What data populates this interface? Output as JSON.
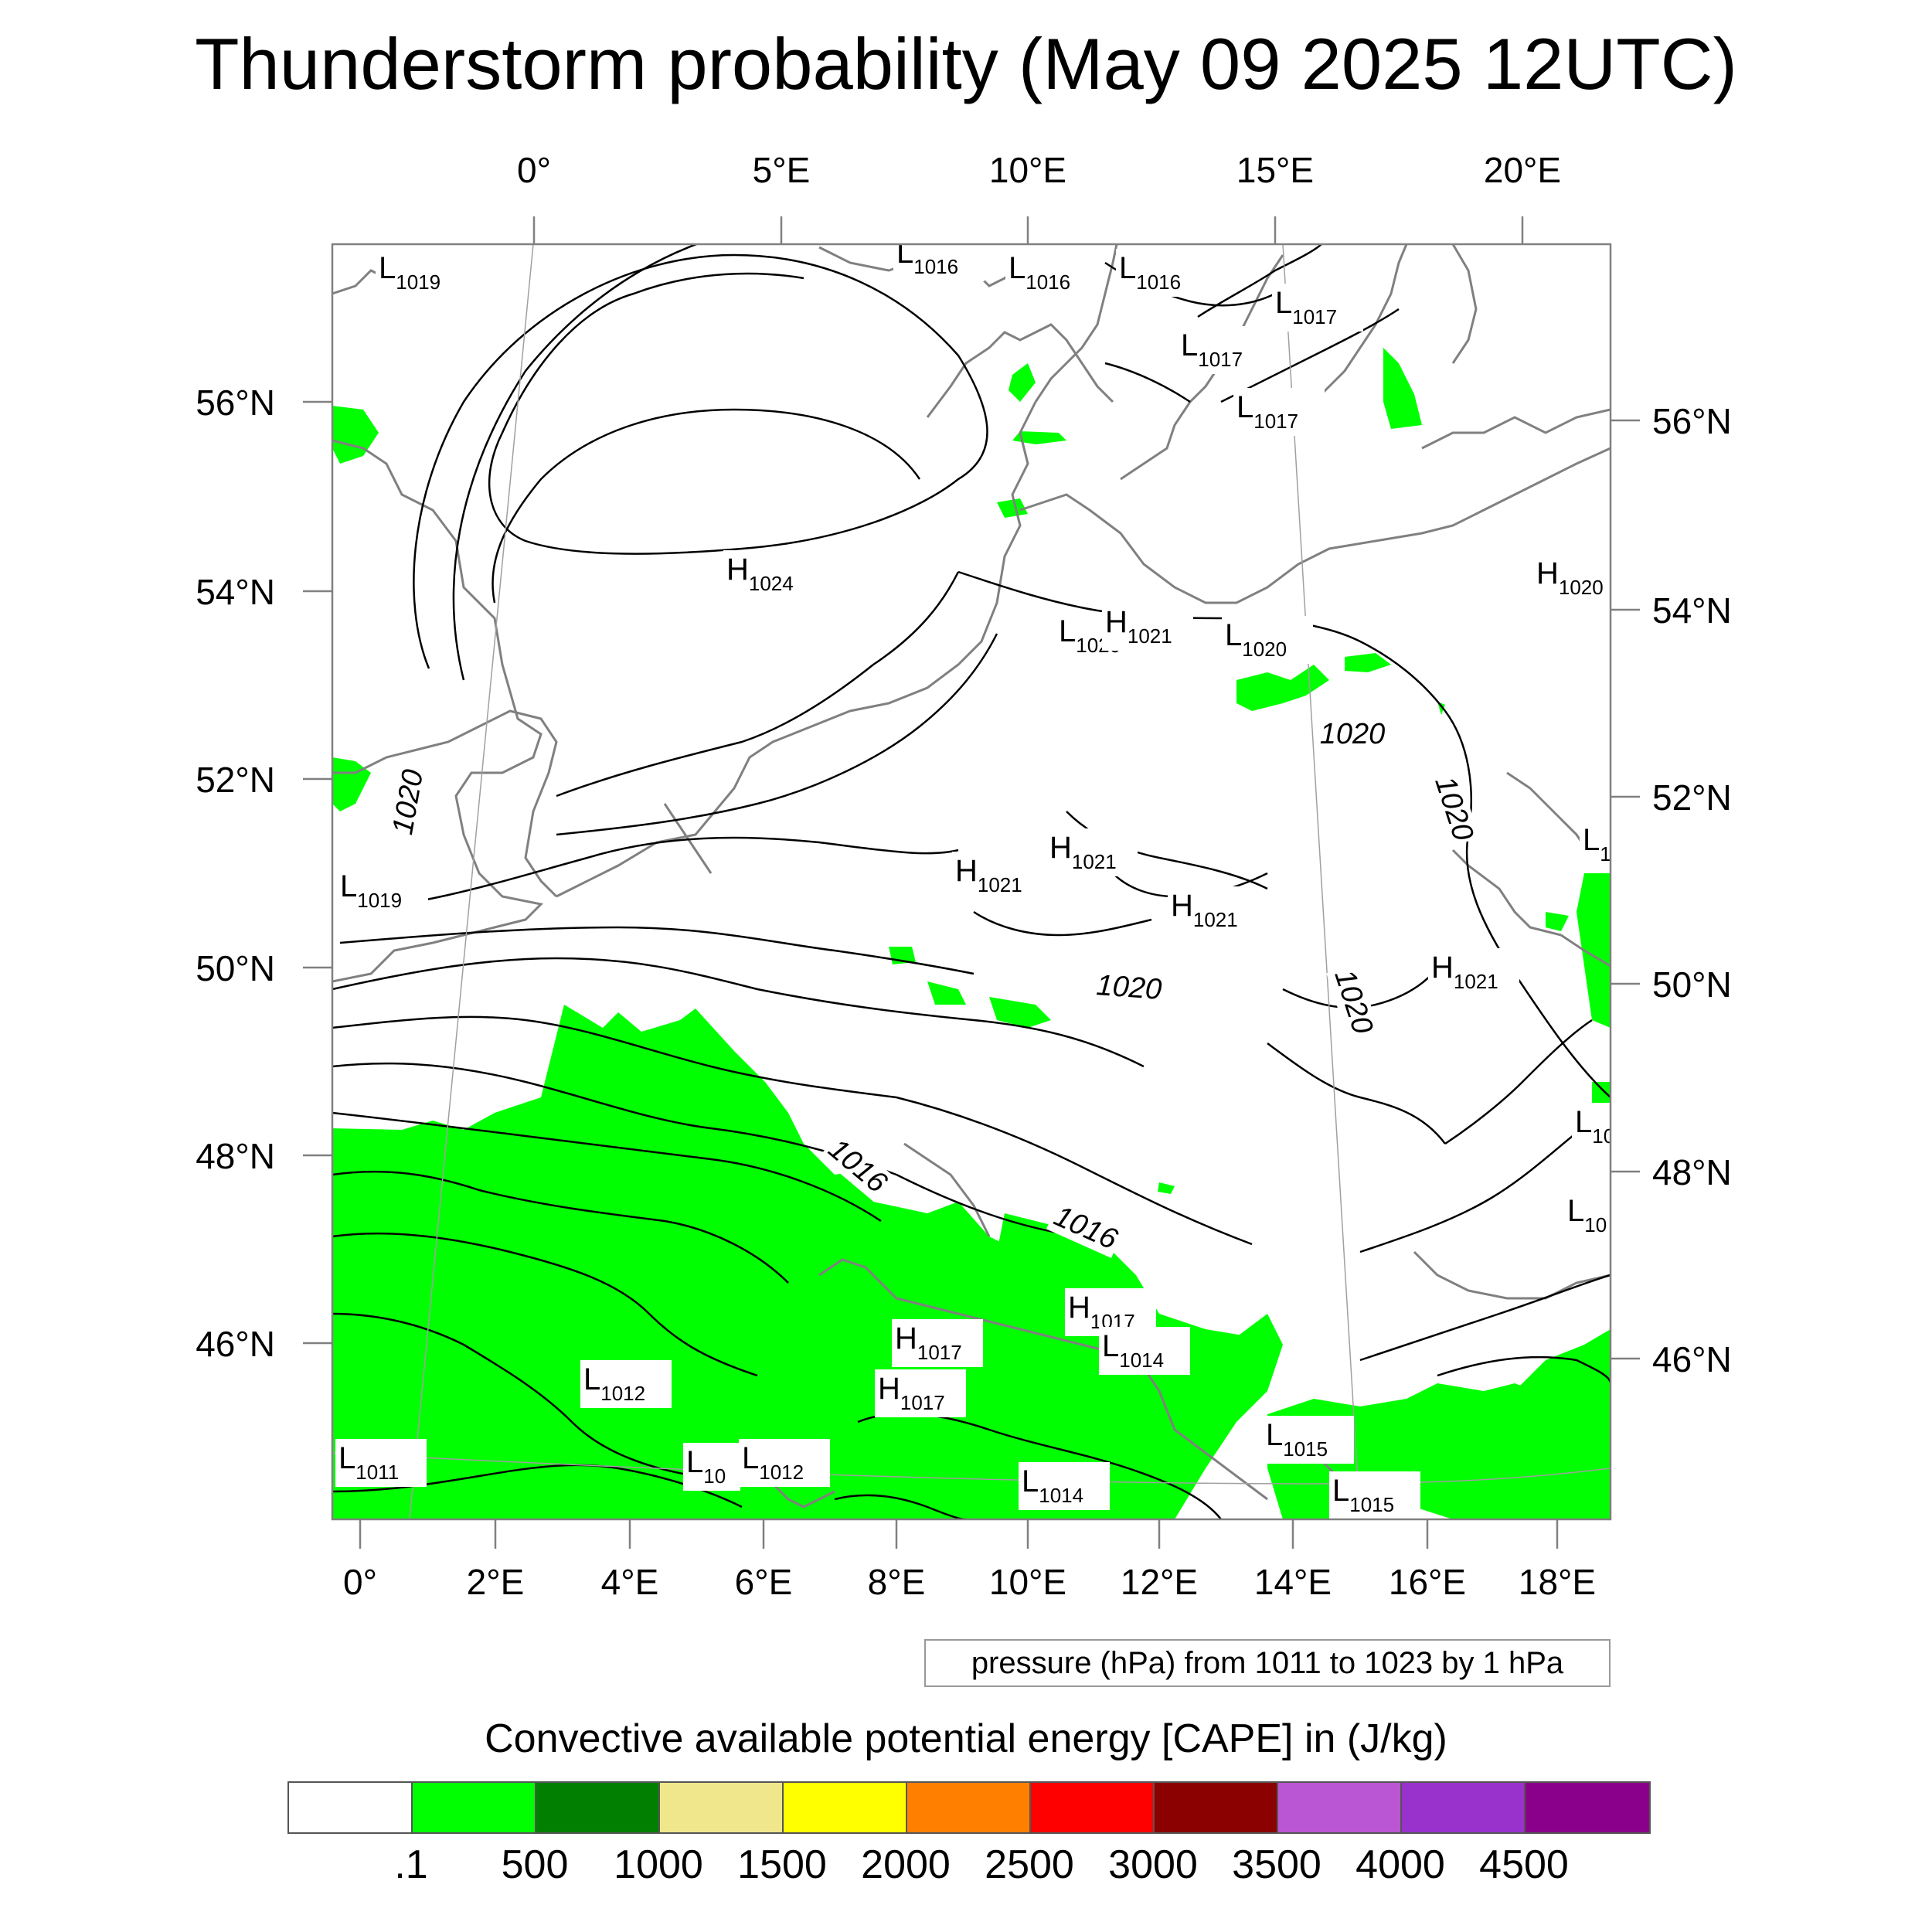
{
  "title": "Thunderstorm probability (May 09 2025 12UTC)",
  "map": {
    "top_lon_labels": [
      "0°",
      "5°E",
      "10°E",
      "15°E",
      "20°E"
    ],
    "left_lat_labels": [
      "56°N",
      "54°N",
      "52°N",
      "50°N",
      "48°N",
      "46°N"
    ],
    "right_lat_labels": [
      "56°N",
      "54°N",
      "52°N",
      "50°N",
      "48°N",
      "46°N"
    ],
    "bottom_lon_labels": [
      "0°",
      "2°E",
      "4°E",
      "6°E",
      "8°E",
      "10°E",
      "12°E",
      "14°E",
      "16°E",
      "18°E"
    ],
    "isobar_labels": [
      "1020",
      "1020",
      "1020",
      "1020",
      "1020",
      "1016",
      "1016"
    ],
    "pressure_centers": [
      {
        "type": "L",
        "value": "1019"
      },
      {
        "type": "L",
        "value": "1016"
      },
      {
        "type": "L",
        "value": "1016"
      },
      {
        "type": "L",
        "value": "1016"
      },
      {
        "type": "L",
        "value": "1017"
      },
      {
        "type": "L",
        "value": "1017"
      },
      {
        "type": "L",
        "value": "1017"
      },
      {
        "type": "H",
        "value": "1024"
      },
      {
        "type": "H",
        "value": "1020"
      },
      {
        "type": "L",
        "value": "1020"
      },
      {
        "type": "H",
        "value": "1021"
      },
      {
        "type": "L",
        "value": "1020"
      },
      {
        "type": "L",
        "value": "1019"
      },
      {
        "type": "H",
        "value": "1021"
      },
      {
        "type": "H",
        "value": "1021"
      },
      {
        "type": "H",
        "value": "1021"
      },
      {
        "type": "H",
        "value": "1021"
      },
      {
        "type": "H",
        "value": "1017"
      },
      {
        "type": "L",
        "value": "1014"
      },
      {
        "type": "H",
        "value": "1017"
      },
      {
        "type": "H",
        "value": "1017"
      },
      {
        "type": "L",
        "value": "1012"
      },
      {
        "type": "L",
        "value": "1011"
      },
      {
        "type": "L",
        "value": "10"
      },
      {
        "type": "L",
        "value": "1012"
      },
      {
        "type": "L",
        "value": "1014"
      },
      {
        "type": "L",
        "value": "1015"
      },
      {
        "type": "L",
        "value": "1015"
      },
      {
        "type": "L",
        "value": "1"
      },
      {
        "type": "L",
        "value": "10"
      },
      {
        "type": "L",
        "value": "10"
      }
    ],
    "colors": {
      "cape_fill": "#00ff00",
      "isobar": "#000000",
      "coastline": "#808080",
      "grid": "#a0a0a0"
    }
  },
  "pressure_note": "pressure (hPa) from 1011 to 1023 by 1 hPa",
  "legend": {
    "title": "Convective available potential energy [CAPE] in (J/kg)",
    "colors": [
      "#ffffff",
      "#00ff00",
      "#007f00",
      "#f0e68c",
      "#ffff00",
      "#ff8000",
      "#ff0000",
      "#8b0000",
      "#ba55d3",
      "#9932cc",
      "#8b008b"
    ],
    "labels": [
      ".1",
      "500",
      "1000",
      "1500",
      "2000",
      "2500",
      "3000",
      "3500",
      "4000",
      "4500"
    ]
  }
}
